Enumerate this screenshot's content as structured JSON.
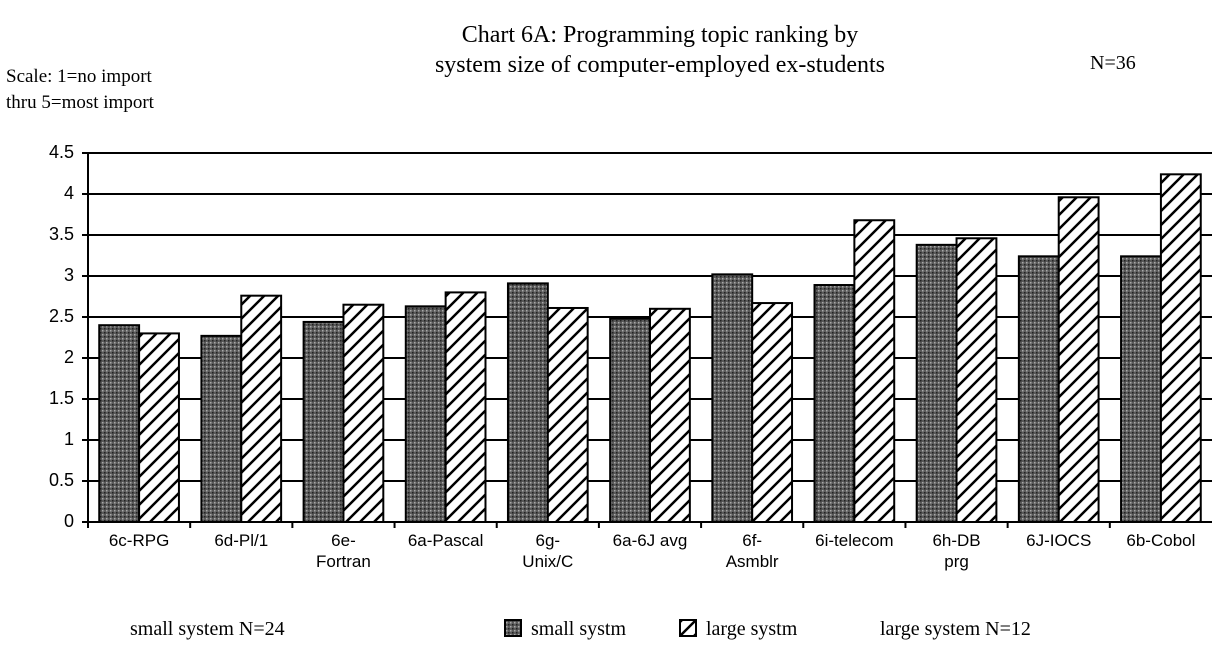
{
  "chart_data": {
    "type": "bar",
    "title": "Chart 6A:  Programming topic ranking by\nsystem size of computer-employed ex-students",
    "subtitle": "N=36",
    "y_label": "Scale: 1=no import\nthru 5=most import",
    "categories": [
      "6c-RPG",
      "6d-Pl/1",
      "6e-\nFortran",
      "6a-Pascal",
      "6g-\nUnix/C",
      "6a-6J avg",
      "6f-\nAsmblr",
      "6i-telecom",
      "6h-DB\nprg",
      "6J-IOCS",
      "6b-Cobol"
    ],
    "series": [
      {
        "name": "small systm",
        "color": "#5a5a5a",
        "values": [
          2.4,
          2.27,
          2.44,
          2.63,
          2.91,
          2.48,
          3.02,
          2.89,
          3.38,
          3.24,
          3.24
        ]
      },
      {
        "name": "large systm",
        "color": "#ffffff",
        "values": [
          2.3,
          2.76,
          2.65,
          2.8,
          2.61,
          2.6,
          2.67,
          3.68,
          3.46,
          3.96,
          4.24
        ]
      }
    ],
    "notes": [
      "small system N=24",
      "large system N=12"
    ],
    "ylim": [
      0,
      4.5
    ],
    "yticks": [
      0,
      0.5,
      1,
      1.5,
      2,
      2.5,
      3,
      3.5,
      4,
      4.5
    ],
    "grid": true
  }
}
